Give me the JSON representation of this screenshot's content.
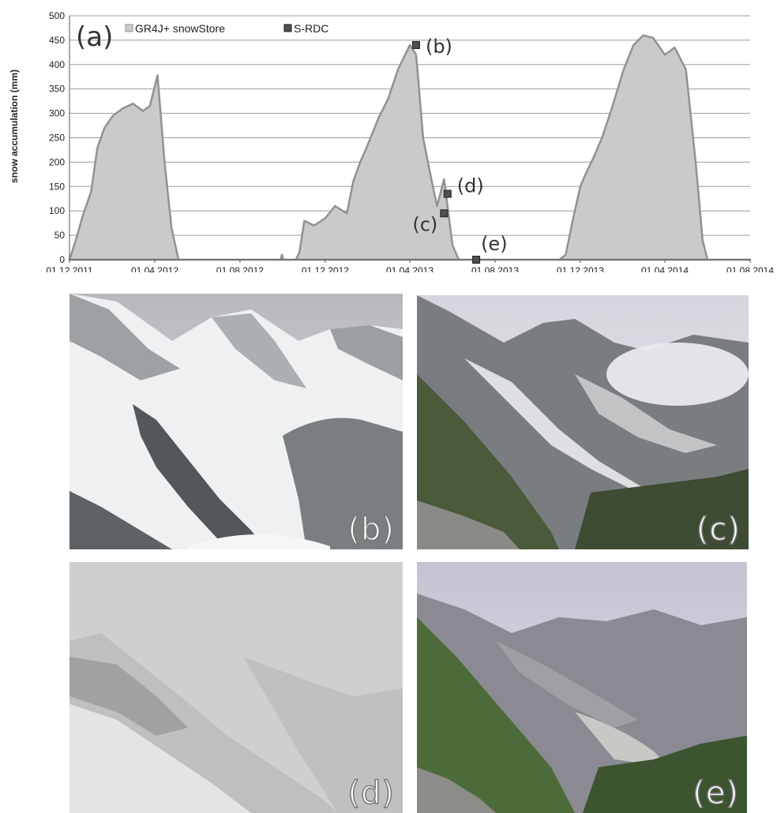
{
  "chart_data": {
    "type": "area",
    "panel_label": "(a)",
    "ylabel": "snow accumulation  (mm)",
    "xlabel": "",
    "ylim": [
      0,
      500
    ],
    "yticks": [
      0,
      50,
      100,
      150,
      200,
      250,
      300,
      350,
      400,
      450,
      500
    ],
    "xticks": [
      "01.12.2011",
      "01.04.2012",
      "01.08.2012",
      "01.12.2012",
      "01.04.2013",
      "01.08.2013",
      "01.12.2013",
      "01.04.2014",
      "01.08.2014"
    ],
    "xrange": [
      "01.12.2011",
      "01.08.2014"
    ],
    "grid": "horizontal",
    "legend_position": "top-left",
    "series": [
      {
        "name": "GR4J+ snowStore",
        "type": "area",
        "fill": "#c9cbca",
        "stroke": "#8f9391",
        "points": [
          [
            "01.12.2011",
            0
          ],
          [
            "10.12.2011",
            40
          ],
          [
            "20.12.2011",
            90
          ],
          [
            "01.01.2012",
            140
          ],
          [
            "10.01.2012",
            230
          ],
          [
            "20.01.2012",
            270
          ],
          [
            "01.02.2012",
            295
          ],
          [
            "15.02.2012",
            310
          ],
          [
            "01.03.2012",
            320
          ],
          [
            "15.03.2012",
            305
          ],
          [
            "25.03.2012",
            315
          ],
          [
            "05.04.2012",
            378
          ],
          [
            "15.04.2012",
            200
          ],
          [
            "25.04.2012",
            65
          ],
          [
            "05.05.2012",
            0
          ],
          [
            "28.09.2012",
            0
          ],
          [
            "30.09.2012",
            10
          ],
          [
            "02.10.2012",
            0
          ],
          [
            "20.10.2012",
            0
          ],
          [
            "25.10.2012",
            15
          ],
          [
            "01.11.2012",
            80
          ],
          [
            "15.11.2012",
            70
          ],
          [
            "01.12.2012",
            85
          ],
          [
            "15.12.2012",
            110
          ],
          [
            "01.01.2013",
            95
          ],
          [
            "10.01.2013",
            160
          ],
          [
            "20.01.2013",
            200
          ],
          [
            "01.02.2013",
            240
          ],
          [
            "15.02.2013",
            290
          ],
          [
            "01.03.2013",
            330
          ],
          [
            "15.03.2013",
            390
          ],
          [
            "01.04.2013",
            440
          ],
          [
            "10.04.2013",
            420
          ],
          [
            "20.04.2013",
            250
          ],
          [
            "01.05.2013",
            170
          ],
          [
            "10.05.2013",
            110
          ],
          [
            "20.05.2013",
            165
          ],
          [
            "01.06.2013",
            30
          ],
          [
            "10.06.2013",
            0
          ],
          [
            "01.11.2013",
            0
          ],
          [
            "10.11.2013",
            10
          ],
          [
            "20.11.2013",
            80
          ],
          [
            "01.12.2013",
            150
          ],
          [
            "10.12.2013",
            180
          ],
          [
            "20.12.2013",
            210
          ],
          [
            "01.01.2014",
            250
          ],
          [
            "15.01.2014",
            310
          ],
          [
            "01.02.2014",
            390
          ],
          [
            "15.02.2014",
            440
          ],
          [
            "01.03.2014",
            460
          ],
          [
            "15.03.2014",
            455
          ],
          [
            "01.04.2014",
            420
          ],
          [
            "15.04.2014",
            435
          ],
          [
            "01.05.2014",
            390
          ],
          [
            "15.05.2014",
            200
          ],
          [
            "25.05.2014",
            40
          ],
          [
            "01.06.2014",
            0
          ],
          [
            "01.08.2014",
            0
          ]
        ]
      },
      {
        "name": "S-RDC",
        "type": "markers",
        "color": "#4d4f52",
        "points": [
          {
            "x": "10.04.2013",
            "y": 440,
            "label": "(b)"
          },
          {
            "x": "20.05.2013",
            "y": 95,
            "label": "(c)"
          },
          {
            "x": "25.05.2013",
            "y": 135,
            "label": "(d)"
          },
          {
            "x": "05.07.2013",
            "y": 0,
            "label": "(e)"
          }
        ]
      }
    ]
  },
  "photos": [
    {
      "label": "(b)"
    },
    {
      "label": "(c)"
    },
    {
      "label": "(d)"
    },
    {
      "label": "(e)"
    }
  ]
}
